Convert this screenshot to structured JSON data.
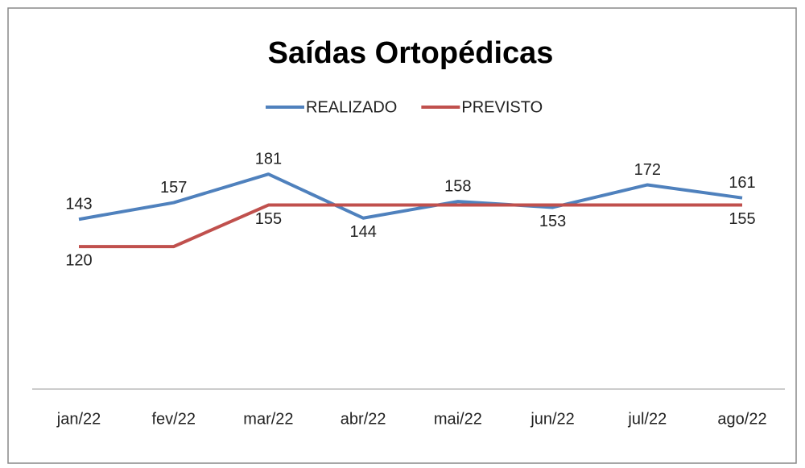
{
  "chart_data": {
    "type": "line",
    "title": "Saídas Ortopédicas",
    "categories": [
      "jan/22",
      "fev/22",
      "mar/22",
      "abr/22",
      "mai/22",
      "jun/22",
      "jul/22",
      "ago/22"
    ],
    "series": [
      {
        "name": "REALIZADO",
        "color": "#4f81bd",
        "values": [
          143,
          157,
          181,
          144,
          158,
          153,
          172,
          161
        ]
      },
      {
        "name": "PREVISTO",
        "color": "#c0504d",
        "values": [
          120,
          120,
          155,
          155,
          155,
          155,
          155,
          155
        ],
        "value_labels": [
          "120",
          null,
          "155",
          null,
          null,
          null,
          null,
          "155"
        ]
      }
    ],
    "legend": "top"
  }
}
